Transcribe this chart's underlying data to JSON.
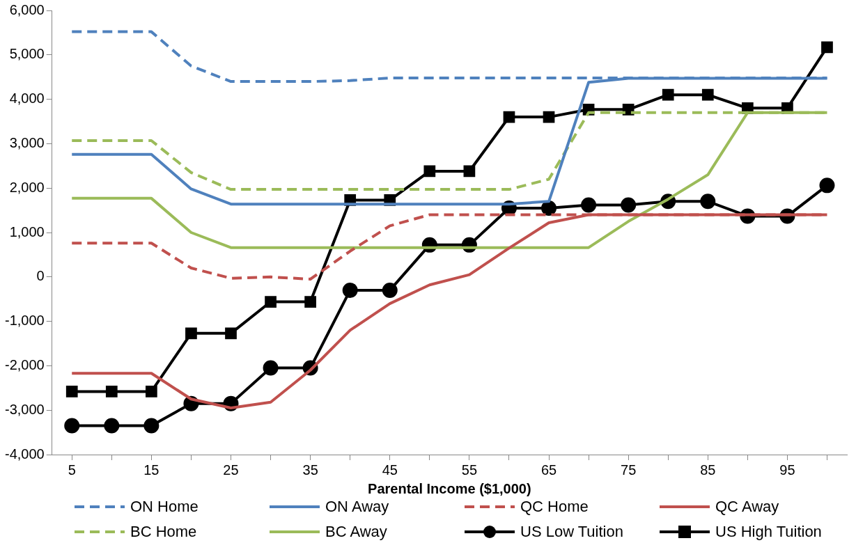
{
  "chart_data": {
    "type": "line",
    "xlabel": "Parental Income ($1,000)",
    "categories": [
      "5",
      null,
      "15",
      null,
      "25",
      null,
      "35",
      null,
      "45",
      null,
      "55",
      null,
      "65",
      null,
      "75",
      null,
      "85",
      null,
      "95",
      null
    ],
    "ylim": [
      -4000,
      6000
    ],
    "yticks": [
      {
        "value": -4000,
        "label": "-4,000"
      },
      {
        "value": -3000,
        "label": "-3,000"
      },
      {
        "value": -2000,
        "label": "-2,000"
      },
      {
        "value": -1000,
        "label": "-1,000"
      },
      0,
      {
        "value": 1000,
        "label": "1,000"
      },
      {
        "value": 2000,
        "label": "2,000"
      },
      {
        "value": 3000,
        "label": "3,000"
      },
      {
        "value": 4000,
        "label": "4,000"
      },
      {
        "value": 5000,
        "label": "5,000"
      },
      {
        "value": 6000,
        "label": "6,000"
      }
    ],
    "grid": false,
    "legend": "bottom",
    "series": [
      {
        "name": "ON Home",
        "color": "#4f81bd",
        "line_style": "dashed",
        "marker": "none",
        "values": [
          5520,
          5520,
          5520,
          4750,
          4400,
          4400,
          4400,
          4420,
          4480,
          4480,
          4480,
          4480,
          4480,
          4480,
          4480,
          4480,
          4480,
          4480,
          4480,
          4480
        ]
      },
      {
        "name": "ON Away",
        "color": "#4f81bd",
        "line_style": "solid",
        "marker": "none",
        "values": [
          2760,
          2760,
          2760,
          1980,
          1640,
          1640,
          1640,
          1640,
          1640,
          1640,
          1640,
          1640,
          1700,
          4380,
          4470,
          4470,
          4470,
          4470,
          4470,
          4470
        ]
      },
      {
        "name": "QC Home",
        "color": "#c0504d",
        "line_style": "dashed",
        "marker": "none",
        "values": [
          760,
          760,
          760,
          200,
          -30,
          0,
          -50,
          580,
          1150,
          1400,
          1400,
          1400,
          1400,
          1400,
          1400,
          1400,
          1400,
          1400,
          1400,
          1400
        ]
      },
      {
        "name": "QC Away",
        "color": "#c0504d",
        "line_style": "solid",
        "marker": "none",
        "values": [
          -2170,
          -2170,
          -2170,
          -2750,
          -2950,
          -2820,
          -2100,
          -1200,
          -600,
          -180,
          50,
          650,
          1220,
          1400,
          1400,
          1400,
          1400,
          1400,
          1400,
          1400
        ]
      },
      {
        "name": "BC Home",
        "color": "#9bbb59",
        "line_style": "dashed",
        "marker": "none",
        "values": [
          3070,
          3070,
          3070,
          2350,
          1970,
          1970,
          1970,
          1970,
          1970,
          1970,
          1970,
          1970,
          2200,
          3700,
          3700,
          3700,
          3700,
          3700,
          3700,
          3700
        ]
      },
      {
        "name": "BC Away",
        "color": "#9bbb59",
        "line_style": "solid",
        "marker": "none",
        "values": [
          1770,
          1770,
          1770,
          1000,
          660,
          660,
          660,
          660,
          660,
          660,
          660,
          660,
          660,
          660,
          1250,
          1750,
          2300,
          3700,
          3700,
          3700
        ]
      },
      {
        "name": "US Low Tuition",
        "color": "#000000",
        "line_style": "solid",
        "marker": "circle",
        "values": [
          -3350,
          -3350,
          -3350,
          -2850,
          -2850,
          -2050,
          -2050,
          -300,
          -300,
          720,
          720,
          1550,
          1550,
          1620,
          1620,
          1700,
          1700,
          1370,
          1370,
          2060
        ]
      },
      {
        "name": "US High Tuition",
        "color": "#000000",
        "line_style": "solid",
        "marker": "square",
        "values": [
          -2580,
          -2580,
          -2580,
          -1270,
          -1270,
          -560,
          -560,
          1730,
          1730,
          2380,
          2380,
          3600,
          3600,
          3770,
          3770,
          4100,
          4100,
          3800,
          3800,
          5170
        ]
      }
    ]
  }
}
